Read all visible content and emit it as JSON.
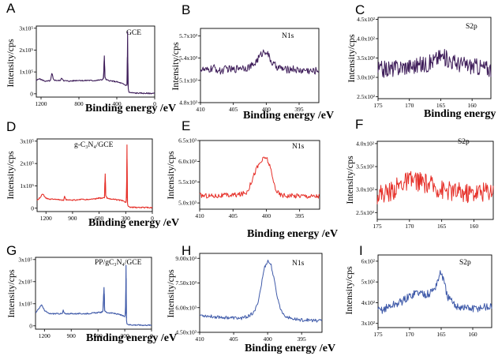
{
  "chart_data": [
    {
      "panel": "A",
      "type": "line",
      "color": "#3f1e5a",
      "annotation": "GCE",
      "xlabel": "Binding energy /eV",
      "ylabel": "Intensity/cps",
      "xlim": [
        1250,
        0
      ],
      "xreverse": true,
      "xticks": [
        {
          "v": 1200,
          "t": "1200"
        },
        {
          "v": 800,
          "t": "800"
        },
        {
          "v": 400,
          "t": "400"
        },
        {
          "v": 0,
          "t": "0"
        }
      ],
      "ylim": [
        -0.15,
        3.1
      ],
      "yticks": [
        {
          "v": 0,
          "t": "0"
        },
        {
          "v": 1,
          "t": "1x10⁵"
        },
        {
          "v": 2,
          "t": "2x10⁵"
        },
        {
          "v": 3,
          "t": "3x10⁵"
        }
      ],
      "x": [
        1250,
        1220,
        1200,
        1150,
        1100,
        1085,
        1070,
        1050,
        1000,
        980,
        960,
        900,
        850,
        800,
        750,
        700,
        650,
        600,
        560,
        540,
        532,
        525,
        515,
        500,
        450,
        400,
        350,
        320,
        300,
        291,
        286,
        282,
        275,
        270,
        250,
        200,
        150,
        100,
        50,
        0
      ],
      "y": [
        0.6,
        0.7,
        0.65,
        0.57,
        0.6,
        0.95,
        0.65,
        0.62,
        0.6,
        0.72,
        0.6,
        0.58,
        0.6,
        0.62,
        0.6,
        0.62,
        0.6,
        0.62,
        0.64,
        0.7,
        1.75,
        0.75,
        0.66,
        0.62,
        0.58,
        0.55,
        0.48,
        0.42,
        0.38,
        0.45,
        2.85,
        0.35,
        0.12,
        0.07,
        0.05,
        0.03,
        0.03,
        0.02,
        0.02,
        0.02
      ]
    },
    {
      "panel": "B",
      "type": "line",
      "color": "#3f1e5a",
      "annotation": "N1s",
      "xlabel": "Binding energy /eV",
      "ylabel": "Intensity/cps",
      "xlim": [
        410,
        392
      ],
      "xreverse": true,
      "xticks": [
        {
          "v": 410,
          "t": "410"
        },
        {
          "v": 405,
          "t": "405"
        },
        {
          "v": 400,
          "t": "400"
        },
        {
          "v": 395,
          "t": "395"
        }
      ],
      "ylim": [
        4.8,
        5.8
      ],
      "yticks": [
        {
          "v": 4.8,
          "t": "4.8x10³"
        },
        {
          "v": 5.1,
          "t": "5.1x10³"
        },
        {
          "v": 5.4,
          "t": "5.4x10³"
        },
        {
          "v": 5.7,
          "t": "5.7x10³"
        }
      ],
      "x": [
        410,
        409,
        408,
        407,
        406,
        405,
        404,
        403,
        402,
        401.5,
        401,
        400.5,
        400,
        399.5,
        399,
        398.5,
        398,
        397,
        396,
        395,
        394,
        393,
        392
      ],
      "y": [
        5.25,
        5.23,
        5.27,
        5.22,
        5.26,
        5.24,
        5.28,
        5.27,
        5.3,
        5.36,
        5.42,
        5.48,
        5.5,
        5.4,
        5.32,
        5.29,
        5.27,
        5.24,
        5.26,
        5.23,
        5.24,
        5.22,
        5.24
      ],
      "noise": 0.05
    },
    {
      "panel": "C",
      "type": "line",
      "color": "#3f1e5a",
      "annotation": "S2p",
      "xlabel": "Binding energy /eV",
      "ylabel": "Intensity/cps",
      "xlim": [
        175,
        157
      ],
      "xreverse": true,
      "xticks": [
        {
          "v": 175,
          "t": "175"
        },
        {
          "v": 170,
          "t": "170"
        },
        {
          "v": 165,
          "t": "165"
        },
        {
          "v": 160,
          "t": "160"
        }
      ],
      "ylim": [
        2.45,
        4.55
      ],
      "yticks": [
        {
          "v": 2.5,
          "t": "2.5x10²"
        },
        {
          "v": 3.0,
          "t": "3.0x10²"
        },
        {
          "v": 3.5,
          "t": "3.5x10²"
        },
        {
          "v": 4.0,
          "t": "4.0x10²"
        },
        {
          "v": 4.5,
          "t": "4.5x10²"
        }
      ],
      "x": [
        175,
        173,
        171,
        169,
        167,
        166,
        165,
        164,
        163,
        162,
        160,
        158,
        157
      ],
      "y": [
        3.2,
        3.22,
        3.28,
        3.3,
        3.35,
        3.45,
        3.55,
        3.48,
        3.4,
        3.35,
        3.3,
        3.25,
        3.22
      ],
      "noise": 0.22
    },
    {
      "panel": "D",
      "type": "line",
      "color": "#e6312a",
      "annotation": "g-C₃N₄/GCE",
      "xlabel": "Binding energy /eV",
      "ylabel": "Intensity/cps",
      "xlim": [
        1300,
        0
      ],
      "xreverse": true,
      "xticks": [
        {
          "v": 1200,
          "t": "1200"
        },
        {
          "v": 900,
          "t": "900"
        },
        {
          "v": 600,
          "t": "600"
        },
        {
          "v": 300,
          "t": "300"
        },
        {
          "v": 0,
          "t": "0"
        }
      ],
      "ylim": [
        -0.15,
        3.1
      ],
      "yticks": [
        {
          "v": 0,
          "t": "0"
        },
        {
          "v": 1,
          "t": "1x10⁵"
        },
        {
          "v": 2,
          "t": "2x10⁵"
        },
        {
          "v": 3,
          "t": "3x10⁵"
        }
      ],
      "x": [
        1300,
        1260,
        1240,
        1200,
        1150,
        1100,
        1050,
        1000,
        990,
        975,
        950,
        900,
        850,
        800,
        750,
        700,
        650,
        600,
        560,
        540,
        532,
        525,
        510,
        500,
        450,
        400,
        350,
        320,
        300,
        291,
        286,
        282,
        276,
        270,
        250,
        200,
        150,
        100,
        50,
        0
      ],
      "y": [
        0.35,
        0.5,
        0.65,
        0.45,
        0.4,
        0.42,
        0.38,
        0.35,
        0.55,
        0.38,
        0.36,
        0.36,
        0.37,
        0.4,
        0.38,
        0.4,
        0.42,
        0.45,
        0.45,
        0.48,
        1.55,
        0.55,
        0.45,
        0.42,
        0.4,
        0.38,
        0.35,
        0.3,
        0.28,
        0.45,
        2.85,
        0.25,
        0.1,
        0.06,
        0.04,
        0.04,
        0.03,
        0.03,
        0.03,
        0.03
      ]
    },
    {
      "panel": "E",
      "type": "line",
      "color": "#e6312a",
      "annotation": "N1s",
      "xlabel": "Binding energy /eV",
      "ylabel": "Intensity/cps",
      "xlim": [
        410,
        392
      ],
      "xreverse": true,
      "xticks": [
        {
          "v": 410,
          "t": "410"
        },
        {
          "v": 405,
          "t": "405"
        },
        {
          "v": 400,
          "t": "400"
        },
        {
          "v": 395,
          "t": "395"
        }
      ],
      "ylim": [
        4.85,
        6.5
      ],
      "yticks": [
        {
          "v": 5.0,
          "t": "5.0x10³"
        },
        {
          "v": 5.5,
          "t": "5.5x10³"
        },
        {
          "v": 6.0,
          "t": "6.0x10³"
        },
        {
          "v": 6.5,
          "t": "6.5x10³"
        }
      ],
      "x": [
        410,
        408,
        406,
        404,
        403,
        402.5,
        402,
        401.5,
        401,
        400.5,
        400,
        399.5,
        399,
        398.5,
        398,
        397,
        396,
        395,
        394,
        393,
        392
      ],
      "y": [
        5.18,
        5.17,
        5.18,
        5.2,
        5.25,
        5.4,
        5.62,
        5.82,
        5.95,
        6.05,
        6.1,
        5.9,
        5.55,
        5.3,
        5.2,
        5.18,
        5.17,
        5.18,
        5.17,
        5.16,
        5.17
      ],
      "noise": 0.06
    },
    {
      "panel": "F",
      "type": "line",
      "color": "#e6312a",
      "annotation": "S2p",
      "xlabel": "",
      "ylabel": "Intensity/cps",
      "xlim": [
        175,
        157
      ],
      "xreverse": true,
      "xticks": [
        {
          "v": 175,
          "t": "175"
        },
        {
          "v": 170,
          "t": "170"
        },
        {
          "v": 165,
          "t": "165"
        },
        {
          "v": 160,
          "t": "160"
        }
      ],
      "ylim": [
        2.35,
        4.05
      ],
      "yticks": [
        {
          "v": 2.5,
          "t": "2.5x10²"
        },
        {
          "v": 3.0,
          "t": "3.0x10²"
        },
        {
          "v": 3.5,
          "t": "3.5x10²"
        },
        {
          "v": 4.0,
          "t": "4.0x10²"
        }
      ],
      "x": [
        175,
        173,
        171,
        169,
        167,
        165,
        163,
        161,
        159,
        157
      ],
      "y": [
        2.9,
        2.95,
        3.15,
        3.2,
        3.1,
        3.0,
        2.95,
        2.92,
        2.95,
        3.0
      ],
      "noise": 0.22
    },
    {
      "panel": "G",
      "type": "line",
      "color": "#3f5aa9",
      "annotation": "PP/gC₃N₄/GCE",
      "xlabel": "Binding energy /eV",
      "ylabel": "Intensity/cps",
      "xlim": [
        1300,
        0
      ],
      "xreverse": true,
      "xticks": [
        {
          "v": 1200,
          "t": "1200"
        },
        {
          "v": 900,
          "t": "900"
        },
        {
          "v": 600,
          "t": "600"
        },
        {
          "v": 300,
          "t": "300"
        },
        {
          "v": 0,
          "t": "0"
        }
      ],
      "ylim": [
        -0.15,
        3.1
      ],
      "yticks": [
        {
          "v": 0,
          "t": "0"
        },
        {
          "v": 1,
          "t": "1x10⁵"
        },
        {
          "v": 2,
          "t": "2x10⁵"
        },
        {
          "v": 3,
          "t": "3x10⁵"
        }
      ],
      "x": [
        1300,
        1260,
        1230,
        1200,
        1150,
        1100,
        1050,
        1000,
        990,
        975,
        950,
        900,
        850,
        800,
        750,
        700,
        650,
        600,
        560,
        545,
        532,
        525,
        510,
        500,
        450,
        400,
        350,
        320,
        300,
        291,
        286,
        282,
        276,
        270,
        250,
        200,
        150,
        100,
        50,
        0
      ],
      "y": [
        0.6,
        0.8,
        0.95,
        0.7,
        0.55,
        0.55,
        0.55,
        0.55,
        0.7,
        0.55,
        0.55,
        0.55,
        0.55,
        0.55,
        0.55,
        0.56,
        0.58,
        0.6,
        0.62,
        0.65,
        1.75,
        0.7,
        0.62,
        0.6,
        0.58,
        0.55,
        0.5,
        0.45,
        0.42,
        0.55,
        2.75,
        0.35,
        0.12,
        0.08,
        0.05,
        0.04,
        0.04,
        0.03,
        0.03,
        0.03
      ]
    },
    {
      "panel": "H",
      "type": "line",
      "color": "#3f5aa9",
      "annotation": "N1s",
      "xlabel": "Binding energy /eV",
      "ylabel": "Intensity/cps",
      "xlim": [
        410,
        392
      ],
      "xreverse": true,
      "xticks": [
        {
          "v": 410,
          "t": "410"
        },
        {
          "v": 405,
          "t": "405"
        },
        {
          "v": 400,
          "t": "400"
        },
        {
          "v": 395,
          "t": "395"
        }
      ],
      "ylim": [
        4.5,
        9.3
      ],
      "yticks": [
        {
          "v": 4.5,
          "t": "4.50x10³"
        },
        {
          "v": 6.0,
          "t": "6.00x10³"
        },
        {
          "v": 7.5,
          "t": "7.50x10³"
        },
        {
          "v": 9.0,
          "t": "9.00x10³"
        }
      ],
      "x": [
        410,
        408,
        406,
        404,
        403,
        402,
        401.5,
        401,
        400.5,
        400,
        399.5,
        399,
        398.5,
        398,
        397.5,
        397,
        396,
        395,
        394,
        393,
        392
      ],
      "y": [
        5.55,
        5.45,
        5.4,
        5.35,
        5.45,
        5.7,
        6.2,
        7.2,
        8.4,
        8.85,
        8.6,
        7.6,
        6.5,
        5.8,
        5.55,
        5.4,
        5.3,
        5.25,
        5.25,
        5.2,
        5.25
      ],
      "noise": 0.1
    },
    {
      "panel": "I",
      "type": "line",
      "color": "#3f5aa9",
      "annotation": "S2p",
      "xlabel": "",
      "ylabel": "Intensity/cps",
      "xlim": [
        175,
        157
      ],
      "xreverse": true,
      "xticks": [
        {
          "v": 175,
          "t": "175"
        },
        {
          "v": 170,
          "t": "170"
        },
        {
          "v": 165,
          "t": "165"
        },
        {
          "v": 160,
          "t": "160"
        }
      ],
      "ylim": [
        2.8,
        6.3
      ],
      "yticks": [
        {
          "v": 3,
          "t": "3x10²"
        },
        {
          "v": 4,
          "t": "4x10²"
        },
        {
          "v": 5,
          "t": "5x10²"
        },
        {
          "v": 6,
          "t": "6x10²"
        }
      ],
      "x": [
        175,
        174,
        173,
        172,
        171,
        170,
        169,
        168,
        167,
        166,
        165.5,
        165,
        164.5,
        164,
        163.5,
        163,
        162,
        161,
        160,
        159,
        158,
        157
      ],
      "y": [
        3.6,
        3.7,
        3.85,
        3.95,
        4.1,
        4.3,
        4.5,
        4.45,
        4.4,
        4.7,
        5.1,
        5.5,
        4.9,
        4.3,
        4.1,
        3.9,
        3.8,
        3.75,
        3.7,
        3.75,
        3.8,
        3.78
      ],
      "noise": 0.2
    }
  ]
}
